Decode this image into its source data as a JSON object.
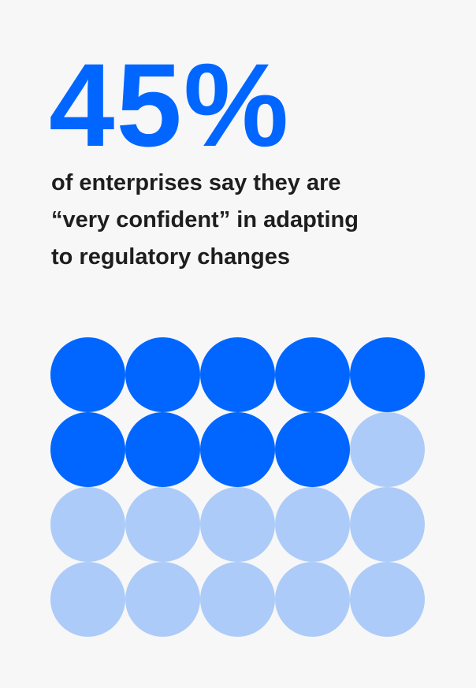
{
  "headline": {
    "value": "45%"
  },
  "description": {
    "lines": [
      "of enterprises say they are",
      "“very confident” in adapting",
      "to regulatory changes"
    ]
  },
  "waffle": {
    "total": 20,
    "filled": 9,
    "columns": 5,
    "rows": 4,
    "filled_color": "#0066ff",
    "empty_color": "#adcbf8"
  },
  "colors": {
    "accent": "#0066ff",
    "text": "#1e1e1e",
    "background": "#f7f7f7"
  }
}
